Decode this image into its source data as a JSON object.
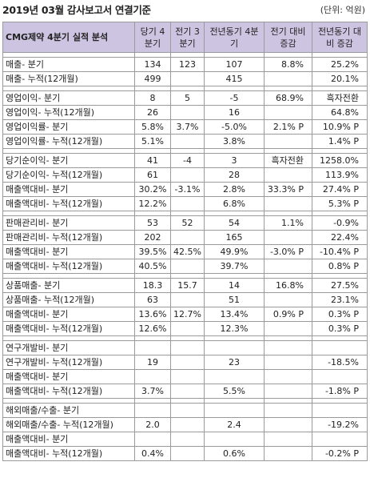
{
  "title": "2019년 03월 감사보고서 연결기준",
  "unit": "(단위: 억원)",
  "header": {
    "company": "CMG제약\n4분기 실적 분석",
    "cols": [
      "당기\n4분기",
      "전기\n3분기",
      "전년동기\n4분기",
      "전기 대비\n증감",
      "전년동기\n대비 증감"
    ]
  },
  "groups": [
    {
      "rows": [
        [
          "매출- 분기",
          "134",
          "123",
          "107",
          "8.8%",
          "25.2%"
        ],
        [
          "매출- 누적(12개월)",
          "499",
          "",
          "415",
          "",
          "20.1%"
        ]
      ]
    },
    {
      "rows": [
        [
          "영업이익- 분기",
          "8",
          "5",
          "-5",
          "68.9%",
          "흑자전환"
        ],
        [
          "영업이익- 누적(12개월)",
          "26",
          "",
          "16",
          "",
          "64.8%"
        ],
        [
          "영업이익률- 분기",
          "5.8%",
          "3.7%",
          "-5.0%",
          "2.1% P",
          "10.9% P"
        ],
        [
          "영업이익률- 누적(12개월)",
          "5.1%",
          "",
          "3.8%",
          "",
          "1.4% P"
        ]
      ]
    },
    {
      "rows": [
        [
          "당기순이익- 분기",
          "41",
          "-4",
          "3",
          "흑자전환",
          "1258.0%"
        ],
        [
          "당기순이익- 누적(12개월)",
          "61",
          "",
          "28",
          "",
          "113.9%"
        ],
        [
          "매출액대비- 분기",
          "30.2%",
          "-3.1%",
          "2.8%",
          "33.3% P",
          "27.4% P"
        ],
        [
          "매출액대비- 누적(12개월)",
          "12.2%",
          "",
          "6.8%",
          "",
          "5.3% P"
        ]
      ]
    },
    {
      "rows": [
        [
          "판매관리비- 분기",
          "53",
          "52",
          "54",
          "1.1%",
          "-0.9%"
        ],
        [
          "판매관리비- 누적(12개월)",
          "202",
          "",
          "165",
          "",
          "22.4%"
        ],
        [
          "매출액대비- 분기",
          "39.5%",
          "42.5%",
          "49.9%",
          "-3.0% P",
          "-10.4% P"
        ],
        [
          "매출액대비- 누적(12개월)",
          "40.5%",
          "",
          "39.7%",
          "",
          "0.8% P"
        ]
      ]
    },
    {
      "rows": [
        [
          "상품매출- 분기",
          "18.3",
          "15.7",
          "14",
          "16.8%",
          "27.5%"
        ],
        [
          "상품매출- 누적(12개월)",
          "63",
          "",
          "51",
          "",
          "23.1%"
        ],
        [
          "매출액대비- 분기",
          "13.6%",
          "12.7%",
          "13.4%",
          "0.9% P",
          "0.3% P"
        ],
        [
          "매출액대비- 누적(12개월)",
          "12.6%",
          "",
          "12.3%",
          "",
          "0.3% P"
        ]
      ]
    },
    {
      "rows": [
        [
          "연구개발비- 분기",
          "",
          "",
          "",
          "",
          ""
        ],
        [
          "연구개발비- 누적(12개월)",
          "19",
          "",
          "23",
          "",
          "-18.5%"
        ],
        [
          "매출액대비- 분기",
          "",
          "",
          "",
          "",
          ""
        ],
        [
          "매출액대비- 누적(12개월)",
          "3.7%",
          "",
          "5.5%",
          "",
          "-1.8% P"
        ]
      ]
    },
    {
      "rows": [
        [
          "해외매출/수출- 분기",
          "",
          "",
          "",
          "",
          ""
        ],
        [
          "해외매출/수출- 누적(12개월)",
          "2.0",
          "",
          "2.4",
          "",
          "-19.2%"
        ],
        [
          "매출액대비- 분기",
          "",
          "",
          "",
          "",
          ""
        ],
        [
          "매출액대비- 누적(12개월)",
          "0.4%",
          "",
          "0.6%",
          "",
          "-0.2% P"
        ]
      ]
    }
  ]
}
